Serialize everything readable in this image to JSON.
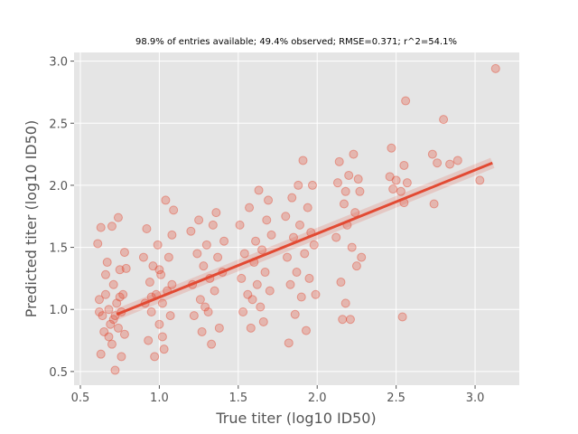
{
  "chart_data": {
    "type": "scatter",
    "title": "98.9% of entries available; 49.4% observed; RMSE=0.371; r^2=54.1%",
    "x_label": "True titer (log10 ID50)",
    "y_label": "Predicted titer (log10 ID50)",
    "color": "#e24a33",
    "grid": true,
    "xlim": [
      0.46,
      3.28
    ],
    "ylim": [
      0.39,
      3.07
    ],
    "xticks": [
      0.5,
      {
        "value": 1,
        "label": "1.0"
      },
      1.5,
      {
        "value": 2,
        "label": "2.0"
      },
      2.5,
      {
        "value": 3,
        "label": "3.0"
      }
    ],
    "yticks": [
      0.5,
      {
        "value": 1,
        "label": "1.0"
      },
      1.5,
      {
        "value": 2,
        "label": "2.0"
      },
      2.5,
      {
        "value": 3,
        "label": "3.0"
      }
    ],
    "x": [
      0.61,
      0.63,
      0.62,
      0.64,
      0.65,
      0.63,
      0.66,
      0.67,
      0.68,
      0.69,
      0.7,
      0.7,
      0.71,
      0.72,
      0.72,
      0.73,
      0.74,
      0.74,
      0.75,
      0.76,
      0.76,
      0.77,
      0.78,
      0.78,
      0.79,
      0.68,
      0.66,
      0.75,
      0.71,
      0.62,
      0.9,
      0.91,
      0.92,
      0.93,
      0.94,
      0.95,
      0.96,
      0.97,
      0.98,
      0.99,
      1.0,
      1.01,
      1.02,
      1.03,
      1.04,
      1.05,
      1.06,
      1.07,
      1.08,
      1.09,
      1.08,
      1.0,
      0.95,
      1.02,
      1.2,
      1.21,
      1.22,
      1.24,
      1.25,
      1.26,
      1.27,
      1.28,
      1.3,
      1.31,
      1.32,
      1.33,
      1.34,
      1.35,
      1.37,
      1.38,
      1.4,
      1.41,
      1.29,
      1.36,
      1.51,
      1.52,
      1.53,
      1.54,
      1.56,
      1.57,
      1.58,
      1.6,
      1.61,
      1.62,
      1.63,
      1.64,
      1.65,
      1.66,
      1.67,
      1.68,
      1.7,
      1.71,
      1.59,
      1.69,
      1.8,
      1.81,
      1.82,
      1.83,
      1.84,
      1.85,
      1.86,
      1.87,
      1.88,
      1.89,
      1.9,
      1.91,
      1.92,
      1.93,
      1.94,
      1.95,
      1.96,
      1.97,
      1.98,
      1.99,
      2.12,
      2.13,
      2.14,
      2.15,
      2.16,
      2.17,
      2.18,
      2.19,
      2.2,
      2.21,
      2.22,
      2.23,
      2.24,
      2.25,
      2.26,
      2.27,
      2.28,
      2.18,
      2.46,
      2.47,
      2.48,
      2.5,
      2.53,
      2.54,
      2.55,
      2.56,
      2.57,
      2.55,
      2.73,
      2.74,
      2.76,
      2.8,
      2.84,
      2.89,
      3.03,
      3.13
    ],
    "values": [
      1.53,
      1.66,
      1.08,
      0.95,
      0.82,
      0.64,
      1.12,
      1.38,
      1.0,
      0.88,
      1.67,
      0.72,
      1.2,
      0.95,
      0.51,
      1.05,
      1.74,
      0.85,
      1.32,
      0.98,
      0.62,
      1.12,
      1.46,
      0.8,
      1.33,
      0.78,
      1.28,
      1.1,
      0.92,
      0.98,
      1.42,
      1.05,
      1.65,
      0.75,
      1.22,
      0.98,
      1.35,
      0.62,
      1.12,
      1.52,
      0.88,
      1.28,
      1.05,
      0.68,
      1.88,
      1.15,
      1.42,
      0.95,
      1.6,
      1.8,
      1.2,
      1.32,
      1.1,
      0.78,
      1.63,
      1.2,
      0.95,
      1.45,
      1.72,
      1.08,
      0.82,
      1.35,
      1.52,
      0.98,
      1.25,
      0.72,
      1.68,
      1.15,
      1.42,
      0.85,
      1.3,
      1.55,
      1.02,
      1.78,
      1.68,
      1.25,
      0.98,
      1.45,
      1.12,
      1.82,
      0.85,
      1.38,
      1.55,
      1.2,
      1.96,
      1.02,
      1.48,
      0.9,
      1.3,
      1.72,
      1.15,
      1.6,
      1.08,
      1.88,
      1.75,
      1.42,
      0.73,
      1.2,
      1.9,
      1.58,
      0.96,
      1.3,
      2.0,
      1.68,
      1.1,
      2.2,
      1.45,
      0.83,
      1.82,
      1.25,
      1.62,
      2.0,
      1.52,
      1.12,
      1.58,
      2.02,
      2.19,
      1.22,
      0.92,
      1.85,
      1.05,
      1.68,
      2.08,
      0.92,
      1.5,
      2.25,
      1.78,
      1.35,
      2.05,
      1.95,
      1.42,
      1.95,
      2.07,
      2.3,
      1.97,
      2.04,
      1.95,
      0.94,
      2.16,
      2.68,
      2.02,
      1.86,
      2.25,
      1.85,
      2.18,
      2.53,
      2.17,
      2.2,
      2.04,
      2.94
    ],
    "fit": {
      "x": [
        0.73,
        3.11
      ],
      "y": [
        0.96,
        2.18
      ]
    }
  }
}
